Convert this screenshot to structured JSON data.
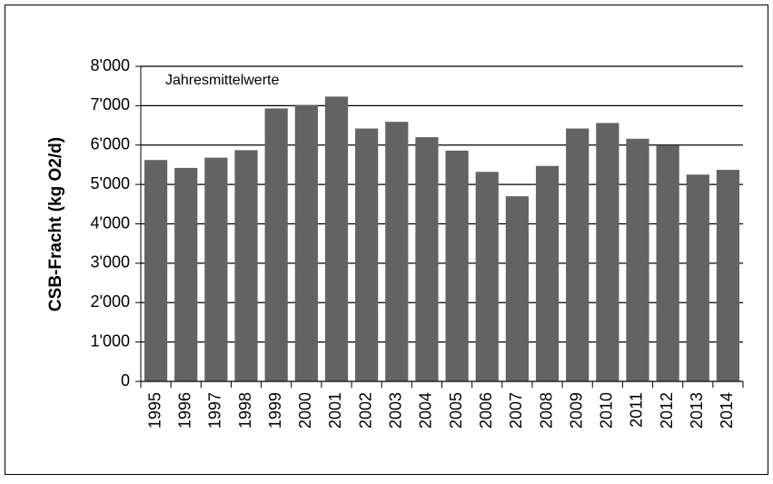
{
  "chart_data": {
    "type": "bar",
    "y_label": "CSB-Fracht (kg O2/d)",
    "annotation": "Jahresmittelwerte",
    "categories": [
      "1995",
      "1996",
      "1997",
      "1998",
      "1999",
      "2000",
      "2001",
      "2002",
      "2003",
      "2004",
      "2005",
      "2006",
      "2007",
      "2008",
      "2009",
      "2010",
      "2011",
      "2012",
      "2013",
      "2014"
    ],
    "values": [
      5620,
      5420,
      5680,
      5870,
      6930,
      7020,
      7230,
      6420,
      6590,
      6200,
      5860,
      5320,
      4700,
      5470,
      6420,
      6560,
      6160,
      5990,
      5250,
      5370
    ],
    "color": "#636363",
    "ylim": [
      0,
      8000
    ],
    "yticks": [
      0,
      {
        "value": 1000,
        "label": "1'000"
      },
      {
        "value": 2000,
        "label": "2'000"
      },
      {
        "value": 3000,
        "label": "3'000"
      },
      {
        "value": 4000,
        "label": "4'000"
      },
      {
        "value": 5000,
        "label": "5'000"
      },
      {
        "value": 6000,
        "label": "6'000"
      },
      {
        "value": 7000,
        "label": "7'000"
      },
      {
        "value": 8000,
        "label": "8'000"
      }
    ],
    "grid": true
  }
}
